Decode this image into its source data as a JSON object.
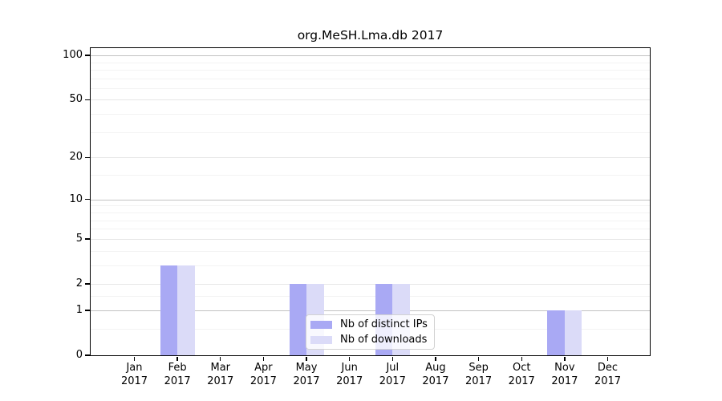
{
  "chart_data": {
    "type": "bar",
    "title": "org.MeSH.Lma.db 2017",
    "yscale": "log1p",
    "ylim": [
      0,
      112
    ],
    "yticks": [
      0,
      1,
      2,
      5,
      10,
      20,
      50,
      100
    ],
    "decade_yticks": [
      1,
      10,
      100
    ],
    "minor_yticks": [
      0.5,
      1.5,
      3,
      4,
      6,
      7,
      8,
      9,
      15,
      30,
      40,
      60,
      70,
      80,
      90
    ],
    "categories": [
      "Jan",
      "Feb",
      "Mar",
      "Apr",
      "May",
      "Jun",
      "Jul",
      "Aug",
      "Sep",
      "Oct",
      "Nov",
      "Dec"
    ],
    "year_label": "2017",
    "grid": "horizontal-only",
    "legend_position": "bottom-center",
    "series": [
      {
        "name": "Nb of distinct IPs",
        "color": "#a9a9f4",
        "values": [
          0,
          3,
          0,
          0,
          2,
          0,
          2,
          0,
          0,
          0,
          1,
          0
        ]
      },
      {
        "name": "Nb of downloads",
        "color": "#dbdbf8",
        "values": [
          0,
          3,
          0,
          0,
          2,
          0,
          2,
          0,
          0,
          0,
          1,
          0
        ]
      }
    ]
  }
}
